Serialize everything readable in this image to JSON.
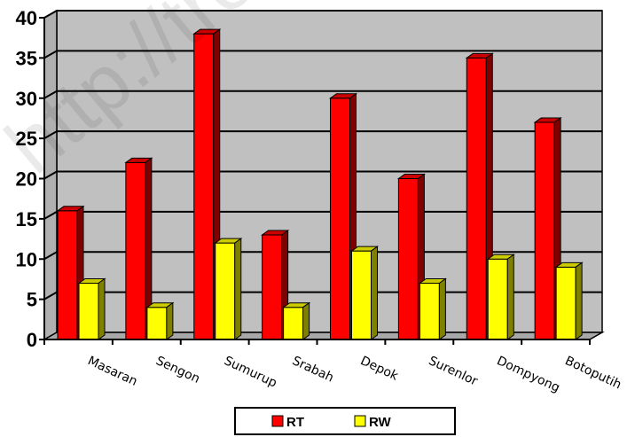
{
  "chart_data": {
    "type": "bar",
    "title": "",
    "xlabel": "",
    "ylabel": "",
    "ylim": [
      0,
      40
    ],
    "yticks": [
      0,
      5,
      10,
      15,
      20,
      25,
      30,
      35,
      40
    ],
    "grid": true,
    "legend_position": "bottom",
    "categories": [
      "Masaran",
      "Sengon",
      "Sumurup",
      "Srabah",
      "Depok",
      "Surenlor",
      "Dompyong",
      "Botoputih"
    ],
    "series": [
      {
        "name": "RT",
        "color": "#ff0000",
        "values": [
          16,
          22,
          38,
          13,
          30,
          20,
          35,
          27
        ]
      },
      {
        "name": "RW",
        "color": "#ffff00",
        "values": [
          7,
          4,
          12,
          4,
          11,
          7,
          10,
          9
        ]
      }
    ]
  },
  "watermark_text": "http://tre"
}
